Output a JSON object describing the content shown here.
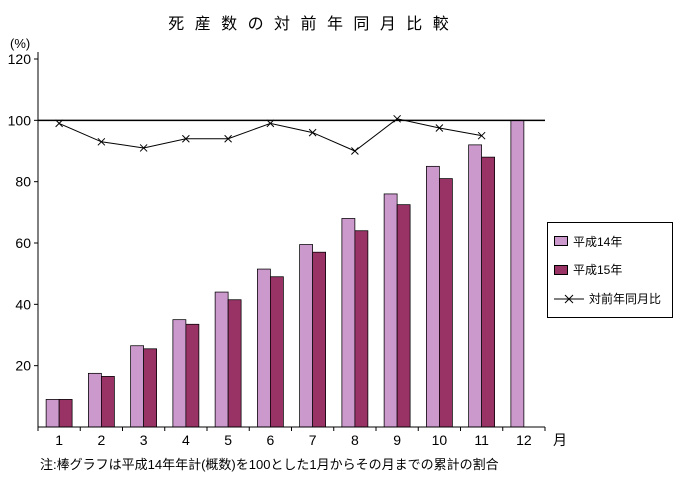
{
  "title": "死 産 数 の 対 前 年 同 月 比 較",
  "y_unit_label": "(%)",
  "x_unit_label": "月",
  "note": "注:棒グラフは平成14年年計(概数)を100とした1月からその月までの累計の割合",
  "legend": {
    "items": [
      {
        "label": "平成14年"
      },
      {
        "label": "平成15年"
      },
      {
        "label": "対前年同月比"
      }
    ]
  },
  "chart_data": {
    "type": "bar+line",
    "title": "死産数の対前年同月比較",
    "categories": [
      1,
      2,
      3,
      4,
      5,
      6,
      7,
      8,
      9,
      10,
      11,
      12
    ],
    "x_axis_suffix": "月",
    "y_axis_unit": "(%)",
    "ylim": [
      0,
      120
    ],
    "yticks": [
      20,
      40,
      60,
      80,
      100,
      120
    ],
    "reference_line": 100,
    "grid": false,
    "legend_position": "right",
    "series": [
      {
        "name": "平成14年",
        "type": "bar",
        "color": "#cc99cc",
        "values": [
          9,
          17.5,
          26.5,
          35,
          44,
          51.5,
          59.5,
          68,
          76,
          85,
          92,
          100
        ]
      },
      {
        "name": "平成15年",
        "type": "bar",
        "color": "#993366",
        "values": [
          9,
          16.5,
          25.5,
          33.5,
          41.5,
          49,
          57,
          64,
          72.5,
          81,
          88,
          null
        ]
      },
      {
        "name": "対前年同月比",
        "type": "line",
        "color": "#000000",
        "marker": "x",
        "values": [
          99,
          93,
          91,
          94,
          94,
          99,
          96,
          90,
          100.5,
          97.5,
          95,
          null
        ]
      }
    ],
    "note": "注:棒グラフは平成14年年計(概数)を100とした1月からその月までの累計の割合"
  }
}
